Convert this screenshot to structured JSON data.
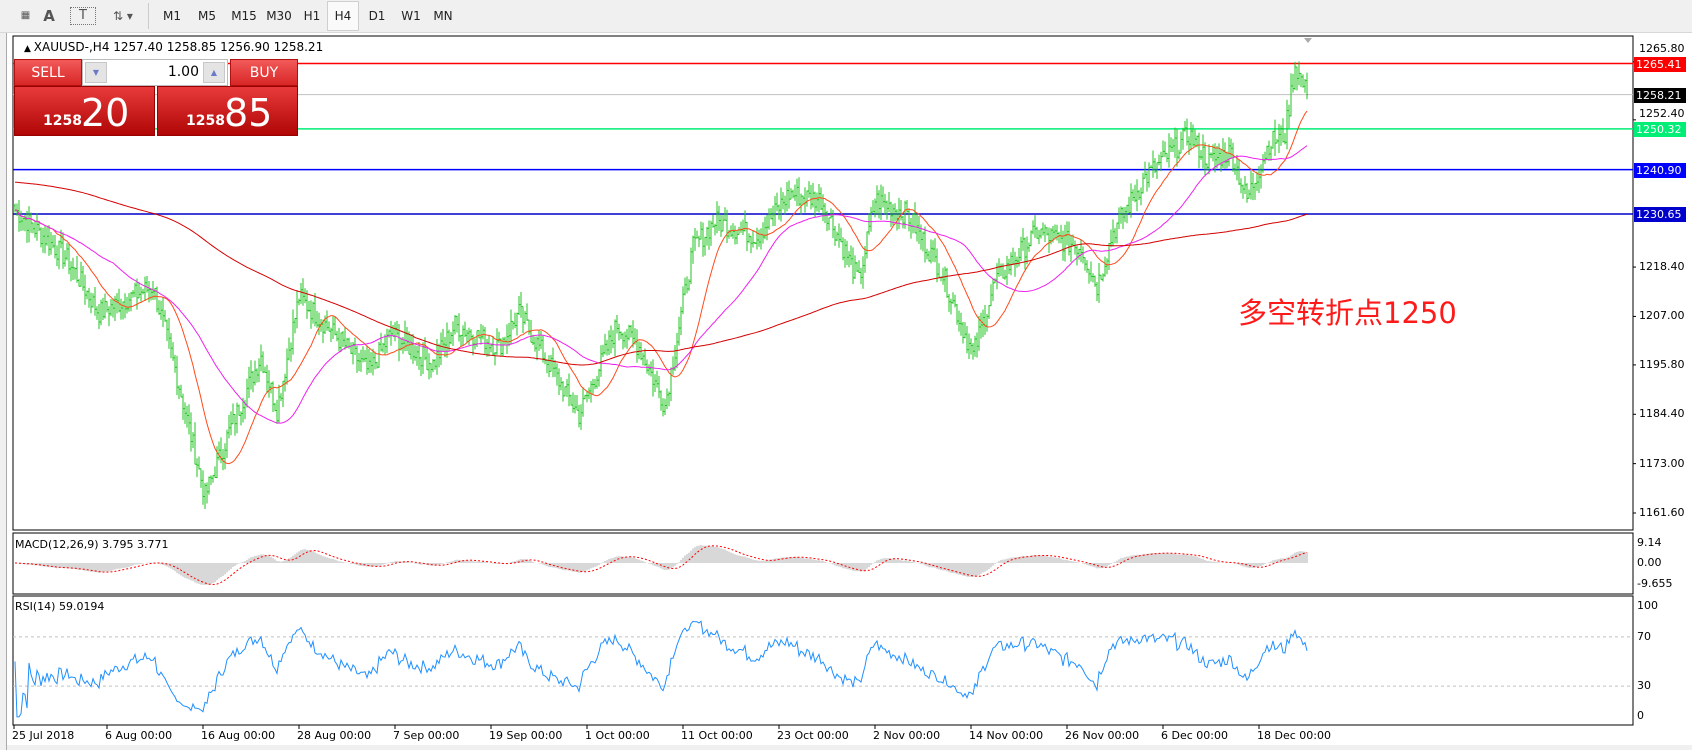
{
  "toolbar": {
    "icons": [
      "grid-f-icon",
      "text-icon",
      "text-label-icon",
      "arrows-icon"
    ],
    "timeframes": [
      "M1",
      "M5",
      "M15",
      "M30",
      "H1",
      "H4",
      "D1",
      "W1",
      "MN"
    ],
    "selected_timeframe": "H4"
  },
  "chart": {
    "title": "XAUUSD-,H4  1257.40 1258.85 1256.90 1258.21",
    "annotation": "多空转折点1250",
    "colors": {
      "bars": "#22c322",
      "ma_fast": "#ff4a1a",
      "ma_mid": "#ee22ee",
      "ma_slow": "#d40000",
      "rsi": "#1e90ff",
      "macd_hist": "#b0b0b0",
      "macd_signal": "#ff0000"
    }
  },
  "trade_panel": {
    "sell_label": "SELL",
    "buy_label": "BUY",
    "lot": "1.00",
    "sell_price_prefix": "1258",
    "sell_price_big": "20",
    "buy_price_prefix": "1258",
    "buy_price_big": "85"
  },
  "price_axis": {
    "range": [
      1161.6,
      1265.8
    ],
    "ticks": [
      "1265.80",
      "1252.40",
      "1218.40",
      "1207.00",
      "1195.80",
      "1184.40",
      "1173.00",
      "1161.60"
    ]
  },
  "levels": [
    {
      "value": "1265.41",
      "color": "#ff0000"
    },
    {
      "value": "1258.21",
      "color": "#000000",
      "line": "#c0c0c0"
    },
    {
      "value": "1250.32",
      "color": "#00ee76"
    },
    {
      "value": "1240.90",
      "color": "#0000ff"
    },
    {
      "value": "1230.65",
      "color": "#0000cc"
    }
  ],
  "macd": {
    "label": "MACD(12,26,9) 3.795 3.771",
    "ticks": [
      "9.14",
      "0.00",
      "-9.655"
    ]
  },
  "rsi": {
    "label": "RSI(14) 59.0194",
    "ticks": [
      "100",
      "70",
      "30",
      "0"
    ],
    "levels": [
      70,
      30
    ]
  },
  "time_axis": [
    "25 Jul 2018",
    "6 Aug 00:00",
    "16 Aug 00:00",
    "28 Aug 00:00",
    "7 Sep 00:00",
    "19 Sep 00:00",
    "1 Oct 00:00",
    "11 Oct 00:00",
    "23 Oct 00:00",
    "2 Nov 00:00",
    "14 Nov 00:00",
    "26 Nov 00:00",
    "6 Dec 00:00",
    "18 Dec 00:00"
  ],
  "chart_data": {
    "type": "candlestick-bars",
    "symbol": "XAUUSD-",
    "timeframe": "H4",
    "close_waypoints_bar_price": [
      [
        0,
        1231.6
      ],
      [
        26,
        1220.3
      ],
      [
        42,
        1207.8
      ],
      [
        69,
        1214
      ],
      [
        80,
        1195
      ],
      [
        95,
        1165.5
      ],
      [
        107,
        1180.3
      ],
      [
        123,
        1197.9
      ],
      [
        131,
        1185.4
      ],
      [
        142,
        1211.5
      ],
      [
        155,
        1205.2
      ],
      [
        177,
        1194.2
      ],
      [
        188,
        1203
      ],
      [
        209,
        1196
      ],
      [
        220,
        1205
      ],
      [
        242,
        1200
      ],
      [
        252,
        1207.8
      ],
      [
        282,
        1184.2
      ],
      [
        301,
        1205
      ],
      [
        312,
        1200
      ],
      [
        325,
        1186.5
      ],
      [
        339,
        1222.8
      ],
      [
        350,
        1229
      ],
      [
        371,
        1225.5
      ],
      [
        387,
        1235.3
      ],
      [
        403,
        1234
      ],
      [
        422,
        1215
      ],
      [
        430,
        1234
      ],
      [
        446,
        1230.6
      ],
      [
        463,
        1217.7
      ],
      [
        479,
        1198
      ],
      [
        490,
        1215
      ],
      [
        511,
        1226.5
      ],
      [
        533,
        1223
      ],
      [
        541,
        1214
      ],
      [
        549,
        1226.5
      ],
      [
        565,
        1239
      ],
      [
        587,
        1249
      ],
      [
        597,
        1242.7
      ],
      [
        608,
        1245
      ],
      [
        616,
        1234
      ],
      [
        627,
        1247
      ],
      [
        635,
        1249
      ],
      [
        640,
        1265
      ],
      [
        646,
        1258.21
      ]
    ],
    "last_ohlc": {
      "open": 1257.4,
      "high": 1258.85,
      "low": 1256.9,
      "close": 1258.21
    }
  }
}
